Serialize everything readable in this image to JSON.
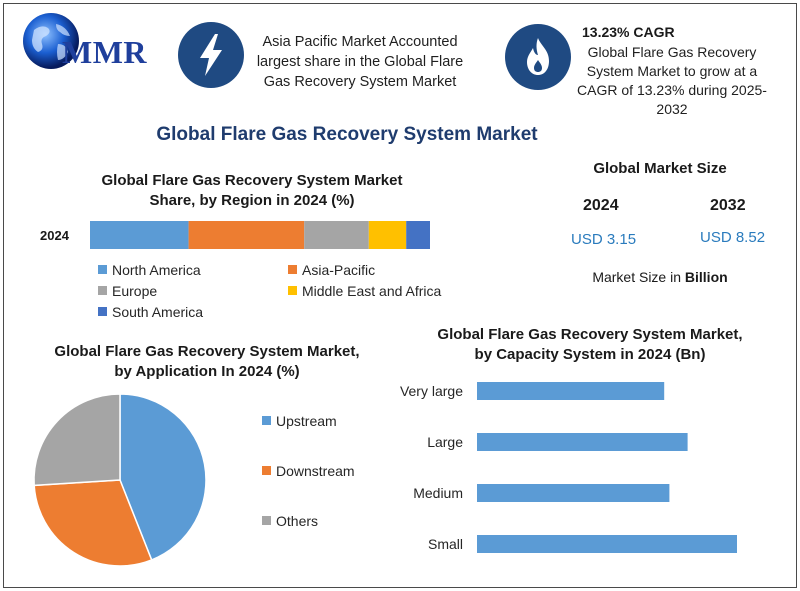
{
  "header": {
    "logo_text": "MMR",
    "highlight_region_text": "Asia Pacific Market Accounted largest share in the Global Flare Gas Recovery System Market",
    "highlight_cagr_title": "13.23% CAGR",
    "highlight_cagr_text": "Global Flare Gas Recovery System Market to grow at a CAGR of 13.23% during 2025-2032",
    "icon_region": "lightning-bolt-icon",
    "icon_cagr": "flame-icon"
  },
  "main_title": "Global Flare Gas Recovery System Market",
  "market_size": {
    "title": "Global Market Size",
    "years": [
      "2024",
      "2032"
    ],
    "values": [
      "USD 3.15",
      "USD 8.52"
    ],
    "footnote_prefix": "Market Size in ",
    "footnote_unit": "Billion"
  },
  "chart_data": [
    {
      "type": "bar",
      "orientation": "horizontal",
      "stacked": true,
      "title": "Global Flare Gas Recovery System Market Share, by Region in 2024 (%)",
      "categories": [
        "2024"
      ],
      "series": [
        {
          "name": "North America",
          "color": "#5b9bd5",
          "values": [
            29
          ]
        },
        {
          "name": "Asia-Pacific",
          "color": "#ed7d31",
          "values": [
            34
          ]
        },
        {
          "name": "Europe",
          "color": "#a5a5a5",
          "values": [
            19
          ]
        },
        {
          "name": "Middle East and Africa",
          "color": "#ffc000",
          "values": [
            11
          ]
        },
        {
          "name": "South America",
          "color": "#4472c4",
          "values": [
            7
          ]
        }
      ],
      "legend_position": "bottom"
    },
    {
      "type": "pie",
      "title": "Global Flare Gas Recovery System Market, by Application In 2024 (%)",
      "labels": [
        "Upstream",
        "Downstream",
        "Others"
      ],
      "values": [
        44,
        30,
        26
      ],
      "colors": [
        "#5b9bd5",
        "#ed7d31",
        "#a5a5a5"
      ],
      "legend_position": "right"
    },
    {
      "type": "bar",
      "orientation": "horizontal",
      "title": "Global Flare Gas Recovery System Market, by Capacity System in 2024 (Bn)",
      "categories": [
        "Very large",
        "Large",
        "Medium",
        "Small"
      ],
      "values": [
        0.72,
        0.81,
        0.74,
        1.0
      ],
      "color": "#5b9bd5",
      "grid": false
    }
  ]
}
